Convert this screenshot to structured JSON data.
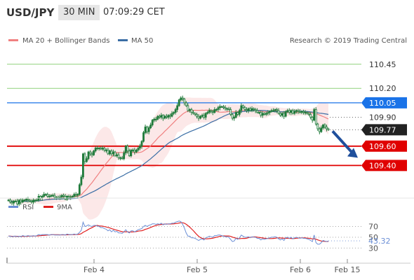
{
  "header": {
    "symbol": "USD/JPY",
    "timeframe": "30 MIN",
    "time": "07:09:29 CET"
  },
  "legend": {
    "ma20": "MA 20 + Bollinger Bands",
    "ma50": "MA 50",
    "copyright": "Research © 2019 Trading Central"
  },
  "rsi_legend": {
    "rsi": "RSI",
    "ma9": "9MA"
  },
  "x_labels": [
    "Feb 4",
    "Feb 5",
    "Feb 6",
    "Feb 15"
  ],
  "levels": [
    {
      "label": "110.45",
      "value": 110.45,
      "kind": "green"
    },
    {
      "label": "110.20",
      "value": 110.2,
      "kind": "green"
    },
    {
      "label": "110.05",
      "value": 110.05,
      "kind": "blue"
    },
    {
      "label": "109.90",
      "value": 109.9,
      "kind": "dotted"
    },
    {
      "label": "109.77",
      "value": 109.77,
      "kind": "last"
    },
    {
      "label": "109.60",
      "value": 109.6,
      "kind": "red"
    },
    {
      "label": "109.40",
      "value": 109.4,
      "kind": "red"
    }
  ],
  "rsi_levels": [
    {
      "label": "70",
      "value": 70
    },
    {
      "label": "50",
      "value": 50
    },
    {
      "label": "30",
      "value": 30
    }
  ],
  "rsi_value": {
    "label": "43.32",
    "value": 43.32
  },
  "colors": {
    "ma20": "#f08080",
    "ma50": "#3a6ea5",
    "rsi": "#6b8fd6",
    "ma9": "#e02020",
    "green": "#8fd17a",
    "blue": "#1a73e8",
    "red": "#e00000",
    "last": "#222222",
    "candle": "#1f7a3a"
  },
  "chart_data": {
    "type": "candlestick",
    "ylim": [
      109.25,
      110.55
    ],
    "rsi_ylim": [
      20,
      85
    ],
    "closes": [
      109.04,
      109.02,
      109.01,
      109.03,
      109.03,
      109.0,
      109.04,
      109.02,
      109.04,
      109.04,
      109.05,
      109.04,
      109.03,
      109.02,
      109.04,
      109.04,
      109.04,
      109.08,
      109.06,
      109.08,
      109.1,
      109.1,
      109.08,
      109.08,
      109.09,
      109.09,
      109.07,
      109.07,
      109.06,
      109.07,
      109.09,
      109.08,
      109.05,
      109.08,
      109.07,
      109.07,
      109.08,
      109.1,
      109.09,
      109.1,
      109.2,
      109.28,
      109.52,
      109.44,
      109.47,
      109.54,
      109.52,
      109.51,
      109.55,
      109.58,
      109.58,
      109.58,
      109.57,
      109.58,
      109.56,
      109.56,
      109.52,
      109.55,
      109.52,
      109.54,
      109.5,
      109.51,
      109.48,
      109.48,
      109.47,
      109.53,
      109.6,
      109.55,
      109.5,
      109.56,
      109.56,
      109.54,
      109.56,
      109.58,
      109.6,
      109.65,
      109.74,
      109.8,
      109.75,
      109.79,
      109.82,
      109.87,
      109.88,
      109.88,
      109.91,
      109.9,
      109.92,
      109.89,
      109.91,
      109.9,
      109.92,
      109.91,
      109.94,
      109.95,
      109.98,
      110.02,
      110.08,
      110.1,
      110.09,
      110.05,
      110.02,
      109.97,
      109.98,
      109.95,
      109.94,
      109.93,
      109.91,
      109.89,
      109.91,
      109.92,
      109.9,
      109.94,
      109.95,
      109.97,
      109.96,
      109.95,
      109.98,
      109.98,
      110.0,
      110.01,
      110.01,
      110.0,
      109.99,
      109.99,
      109.98,
      109.93,
      109.89,
      109.9,
      109.95,
      109.93,
      109.97,
      110.02,
      110.0,
      109.98,
      109.97,
      109.99,
      109.97,
      109.99,
      109.98,
      109.97,
      109.95,
      109.95,
      109.92,
      109.94,
      109.93,
      109.94,
      109.95,
      109.96,
      109.97,
      109.97,
      109.98,
      109.97,
      109.94,
      109.92,
      109.94,
      109.91,
      109.96,
      109.97,
      109.95,
      109.97,
      109.94,
      109.96,
      109.97,
      109.96,
      109.95,
      109.96,
      109.95,
      109.95,
      109.94,
      109.93,
      109.9,
      109.87,
      109.98,
      109.83,
      109.78,
      109.75,
      109.79,
      109.82,
      109.8,
      109.78,
      109.77
    ],
    "rsi": [
      52,
      52,
      51,
      52,
      52,
      51,
      52,
      51,
      53,
      52,
      52,
      53,
      52,
      52,
      53,
      52,
      53,
      55,
      54,
      55,
      55,
      55,
      55,
      54,
      55,
      55,
      54,
      54,
      54,
      54,
      55,
      55,
      54,
      56,
      55,
      55,
      55,
      56,
      55,
      56,
      59,
      63,
      78,
      70,
      71,
      73,
      71,
      70,
      72,
      72,
      71,
      70,
      68,
      68,
      66,
      65,
      62,
      64,
      60,
      63,
      60,
      61,
      58,
      58,
      57,
      60,
      64,
      60,
      58,
      62,
      62,
      60,
      62,
      64,
      65,
      66,
      70,
      72,
      70,
      72,
      73,
      75,
      75,
      74,
      75,
      74,
      76,
      73,
      75,
      74,
      75,
      75,
      76,
      76,
      78,
      79,
      80,
      79,
      74,
      67,
      58,
      52,
      52,
      49,
      49,
      48,
      46,
      44,
      46,
      47,
      45,
      49,
      50,
      52,
      51,
      50,
      53,
      53,
      54,
      54,
      53,
      52,
      51,
      51,
      50,
      46,
      42,
      43,
      48,
      46,
      49,
      54,
      52,
      50,
      50,
      51,
      49,
      51,
      50,
      50,
      48,
      48,
      45,
      47,
      46,
      47,
      48,
      49,
      50,
      50,
      51,
      50,
      47,
      45,
      47,
      44,
      49,
      50,
      48,
      50,
      47,
      49,
      50,
      49,
      48,
      49,
      48,
      48,
      47,
      46,
      44,
      42,
      54,
      40,
      37,
      37,
      40,
      44,
      43,
      42,
      43
    ]
  }
}
